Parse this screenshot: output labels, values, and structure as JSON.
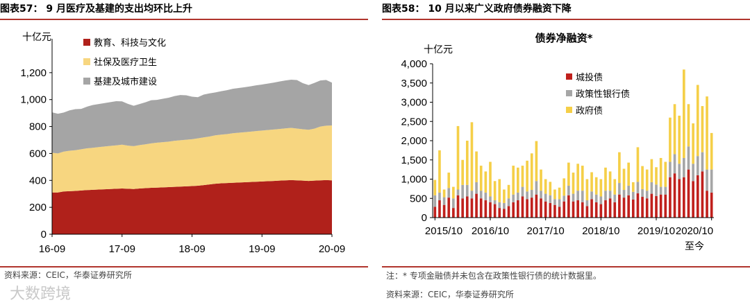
{
  "left_panel": {
    "figure_title": "图表57：  9 月医疗及基建的支出均环比上升",
    "source": "资料来源：CEIC，华泰证券研究所"
  },
  "right_panel": {
    "figure_title": "图表58：  10 月以来广义政府债券融资下降",
    "note": "注：* 专项金融债并未包含在政策性银行债的统计数据里。",
    "source": "资料来源：CEIC，华泰证券研究所"
  },
  "watermark": "大数跨境",
  "chart_data": [
    {
      "type": "area",
      "stacked": true,
      "title": "",
      "ylabel": "十亿元",
      "ylim": [
        0,
        1400
      ],
      "yticks": [
        0,
        200,
        400,
        600,
        800,
        1000,
        1200
      ],
      "ytick_labels": [
        "0",
        "200",
        "400",
        "600",
        "800",
        "1,000",
        "1,200"
      ],
      "xtick_labels": [
        "16-09",
        "17-09",
        "18-09",
        "19-09",
        "20-09"
      ],
      "xtick_index": [
        0,
        12,
        24,
        36,
        48
      ],
      "legend_position": "top-left",
      "series": [
        {
          "name": "教育、科技与文化",
          "color": "#b0211b",
          "values": [
            310,
            310,
            318,
            320,
            322,
            325,
            328,
            330,
            332,
            334,
            336,
            338,
            340,
            338,
            336,
            340,
            342,
            345,
            346,
            348,
            350,
            352,
            354,
            356,
            358,
            360,
            365,
            370,
            375,
            378,
            380,
            382,
            384,
            386,
            388,
            390,
            392,
            394,
            396,
            398,
            400,
            402,
            400,
            398,
            396,
            398,
            400,
            402,
            400
          ]
        },
        {
          "name": "社保及医疗卫生",
          "color": "#f7d680",
          "values": [
            295,
            290,
            296,
            300,
            302,
            306,
            310,
            312,
            315,
            318,
            320,
            322,
            325,
            320,
            318,
            322,
            326,
            330,
            334,
            336,
            338,
            342,
            344,
            346,
            348,
            352,
            354,
            356,
            360,
            362,
            364,
            368,
            370,
            372,
            374,
            376,
            378,
            380,
            382,
            384,
            386,
            388,
            385,
            382,
            380,
            386,
            400,
            404,
            408
          ]
        },
        {
          "name": "基建及城市建设",
          "color": "#a5a5a5",
          "values": [
            300,
            295,
            290,
            300,
            305,
            300,
            310,
            318,
            320,
            322,
            325,
            328,
            322,
            310,
            300,
            305,
            312,
            320,
            318,
            322,
            326,
            332,
            336,
            330,
            316,
            306,
            318,
            320,
            318,
            322,
            326,
            330,
            332,
            334,
            336,
            340,
            342,
            345,
            348,
            352,
            356,
            358,
            360,
            342,
            332,
            340,
            342,
            340,
            318
          ]
        }
      ]
    },
    {
      "type": "bar",
      "stacked": true,
      "title": "债券净融资*",
      "ylabel": "十亿元",
      "ylim": [
        0,
        4000
      ],
      "yticks": [
        0,
        500,
        1000,
        1500,
        2000,
        2500,
        3000,
        3500,
        4000
      ],
      "ytick_labels": [
        "0",
        "500",
        "1,000",
        "1,500",
        "2,000",
        "2,500",
        "3,000",
        "3,500",
        "4,000"
      ],
      "xtick_labels": [
        "2015/10",
        "2016/10",
        "2017/10",
        "2018/10",
        "2019/10",
        "2020/10"
      ],
      "xtick_extra": "至今",
      "xtick_index": [
        0,
        12,
        24,
        36,
        48,
        60
      ],
      "legend_position": "top-left",
      "series": [
        {
          "name": "城投债",
          "color": "#c0201c",
          "values": [
            280,
            450,
            330,
            520,
            250,
            580,
            500,
            550,
            500,
            620,
            500,
            450,
            400,
            350,
            250,
            230,
            300,
            400,
            450,
            550,
            480,
            520,
            600,
            500,
            420,
            380,
            330,
            280,
            420,
            580,
            420,
            450,
            400,
            300,
            480,
            400,
            350,
            450,
            500,
            400,
            600,
            520,
            580,
            470,
            630,
            540,
            500,
            620,
            560,
            600,
            600,
            1050,
            1150,
            1000,
            1050,
            1250,
            950,
            1100,
            1200,
            700,
            650
          ]
        },
        {
          "name": "政策性银行债",
          "color": "#a6a6a6",
          "values": [
            300,
            200,
            200,
            250,
            250,
            150,
            350,
            300,
            200,
            300,
            200,
            200,
            150,
            100,
            150,
            150,
            200,
            200,
            200,
            250,
            200,
            200,
            350,
            200,
            200,
            200,
            150,
            200,
            150,
            250,
            200,
            250,
            300,
            150,
            200,
            200,
            200,
            250,
            200,
            200,
            300,
            200,
            250,
            200,
            300,
            200,
            200,
            300,
            300,
            200,
            200,
            400,
            500,
            400,
            500,
            600,
            450,
            500,
            500,
            550,
            600
          ]
        },
        {
          "name": "政府债",
          "color": "#f5cf48",
          "values": [
            400,
            1100,
            200,
            400,
            300,
            1650,
            650,
            1150,
            1780,
            800,
            650,
            550,
            900,
            500,
            600,
            350,
            350,
            750,
            650,
            550,
            800,
            950,
            1040,
            550,
            380,
            350,
            250,
            300,
            450,
            600,
            550,
            700,
            650,
            550,
            500,
            450,
            450,
            600,
            500,
            400,
            800,
            550,
            600,
            250,
            900,
            600,
            550,
            600,
            450,
            750,
            650,
            1150,
            1300,
            1250,
            2300,
            1100,
            1050,
            1850,
            1200,
            1900,
            950
          ]
        }
      ]
    }
  ]
}
